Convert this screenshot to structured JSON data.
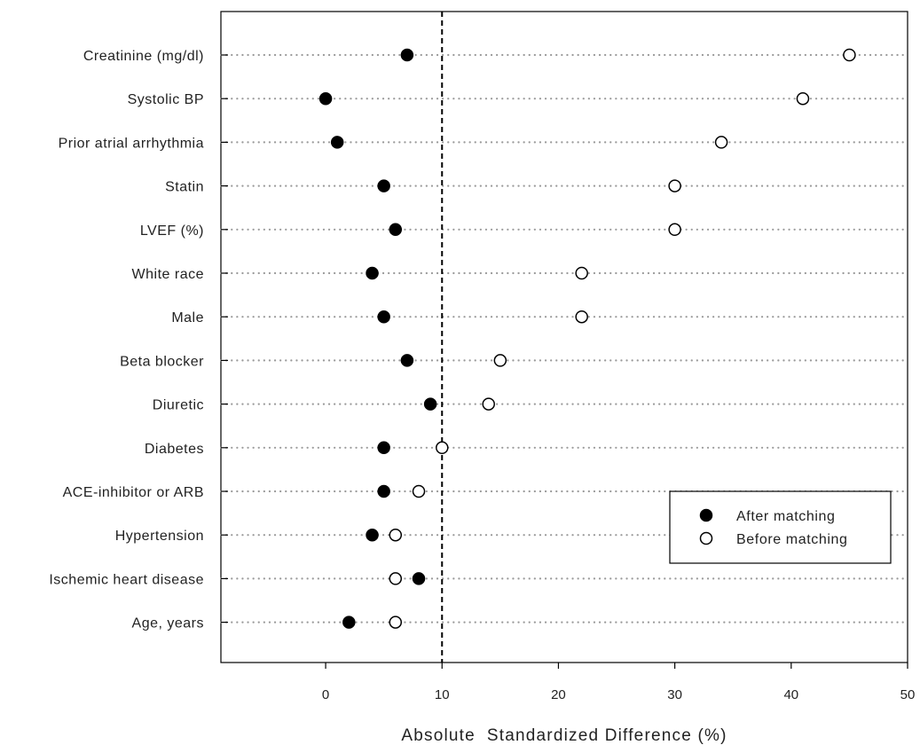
{
  "chart_data": {
    "type": "scatter",
    "categories": [
      "Creatinine (mg/dl)",
      "Systolic BP",
      "Prior atrial arrhythmia",
      "Statin",
      "LVEF (%)",
      "White race",
      "Male",
      "Beta blocker",
      "Diuretic",
      "Diabetes",
      "ACE-inhibitor or ARB",
      "Hypertension",
      "Ischemic heart disease",
      "Age, years"
    ],
    "series": [
      {
        "name": "After matching",
        "marker": "filled",
        "values": [
          7,
          0,
          1,
          5,
          6,
          4,
          5,
          7,
          9,
          5,
          5,
          4,
          8,
          2
        ]
      },
      {
        "name": "Before matching",
        "marker": "open",
        "values": [
          45,
          41,
          34,
          30,
          30,
          22,
          22,
          15,
          14,
          10,
          8,
          6,
          6,
          6
        ]
      }
    ],
    "xlabel": "Absolute  Standardized Difference (%)",
    "ylabel": "",
    "xlim": [
      -9,
      50
    ],
    "xticks": [
      "0",
      "10",
      "20",
      "30",
      "40",
      "50"
    ],
    "reference_line": 10,
    "grid": "dotted horizontal",
    "legend_position": "bottom-right",
    "colors": {
      "marker_stroke": "#000000",
      "filled": "#000000",
      "open": "#ffffff",
      "grid": "#9a9a9a"
    }
  }
}
